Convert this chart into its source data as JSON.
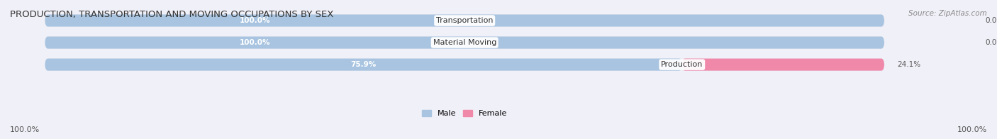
{
  "title": "PRODUCTION, TRANSPORTATION AND MOVING OCCUPATIONS BY SEX",
  "source": "Source: ZipAtlas.com",
  "categories": [
    "Transportation",
    "Material Moving",
    "Production"
  ],
  "male_values": [
    100.0,
    100.0,
    75.9
  ],
  "female_values": [
    0.0,
    0.0,
    24.1
  ],
  "male_color": "#a8c4e0",
  "female_color": "#f088aa",
  "bar_bg_color": "#e8e8f0",
  "title_fontsize": 9.5,
  "source_fontsize": 7.5,
  "tick_fontsize": 8,
  "bar_label_fontsize": 7.5,
  "cat_label_fontsize": 8,
  "legend_fontsize": 8,
  "axis_label_left": "100.0%",
  "axis_label_right": "100.0%",
  "bar_height": 0.55
}
